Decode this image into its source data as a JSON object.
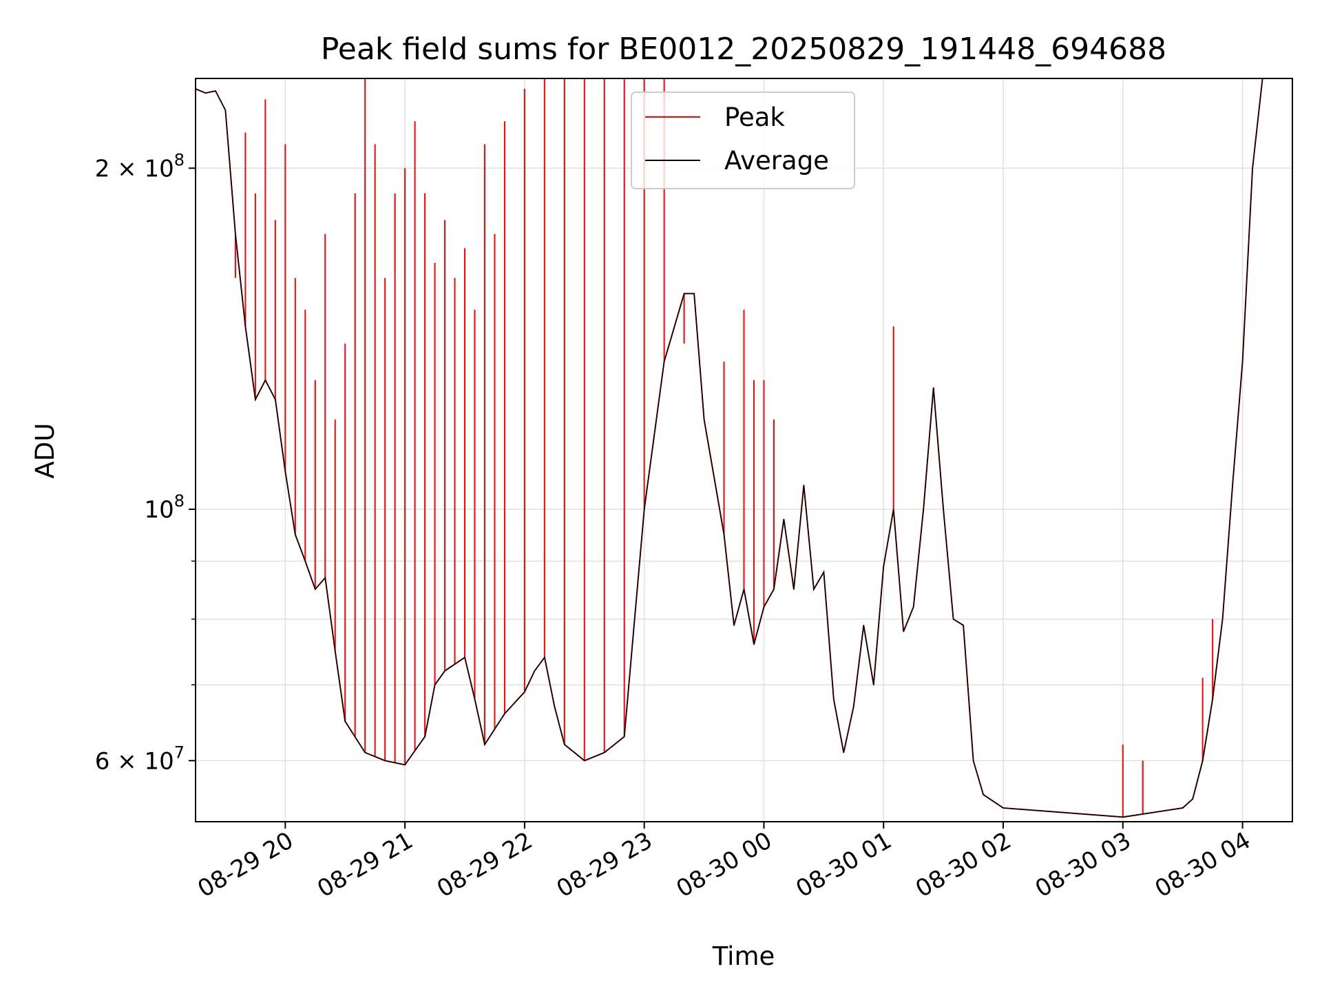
{
  "chart_data": {
    "type": "line",
    "title": "Peak field sums for BE0012_20250829_191448_694688",
    "xlabel": "Time",
    "ylabel": "ADU",
    "y_scale": "log",
    "xlim": [
      "2025-08-29 19:15",
      "2025-08-30 04:25"
    ],
    "ylim": [
      53000000.0,
      240000000.0
    ],
    "grid": true,
    "legend_position": "top-center",
    "x_tick_labels": [
      "08-29 20",
      "08-29 21",
      "08-29 22",
      "08-29 23",
      "08-30 00",
      "08-30 01",
      "08-30 02",
      "08-30 03",
      "08-30 04"
    ],
    "y_tick_labels": [
      {
        "value": 60000000,
        "mantissa": "6",
        "exponent": "7"
      },
      {
        "value": 100000000,
        "mantissa": "",
        "exponent": "8"
      },
      {
        "value": 200000000,
        "mantissa": "2",
        "exponent": "8"
      }
    ],
    "series": [
      {
        "name": "Peak",
        "color": "#ff0000",
        "baseline": "Average",
        "spikes": [
          [
            "2025-08-29 19:35",
            160000000.0
          ],
          [
            "2025-08-29 19:40",
            215000000.0
          ],
          [
            "2025-08-29 19:45",
            190000000.0
          ],
          [
            "2025-08-29 19:50",
            230000000.0
          ],
          [
            "2025-08-29 19:55",
            180000000.0
          ],
          [
            "2025-08-29 20:00",
            210000000.0
          ],
          [
            "2025-08-29 20:05",
            160000000.0
          ],
          [
            "2025-08-29 20:10",
            150000000.0
          ],
          [
            "2025-08-29 20:15",
            130000000.0
          ],
          [
            "2025-08-29 20:20",
            175000000.0
          ],
          [
            "2025-08-29 20:25",
            120000000.0
          ],
          [
            "2025-08-29 20:30",
            140000000.0
          ],
          [
            "2025-08-29 20:35",
            190000000.0
          ],
          [
            "2025-08-29 20:40",
            240000000.0
          ],
          [
            "2025-08-29 20:45",
            210000000.0
          ],
          [
            "2025-08-29 20:50",
            160000000.0
          ],
          [
            "2025-08-29 20:55",
            190000000.0
          ],
          [
            "2025-08-29 21:00",
            200000000.0
          ],
          [
            "2025-08-29 21:05",
            220000000.0
          ],
          [
            "2025-08-29 21:10",
            190000000.0
          ],
          [
            "2025-08-29 21:15",
            165000000.0
          ],
          [
            "2025-08-29 21:20",
            180000000.0
          ],
          [
            "2025-08-29 21:25",
            160000000.0
          ],
          [
            "2025-08-29 21:30",
            170000000.0
          ],
          [
            "2025-08-29 21:35",
            150000000.0
          ],
          [
            "2025-08-29 21:40",
            210000000.0
          ],
          [
            "2025-08-29 21:45",
            175000000.0
          ],
          [
            "2025-08-29 21:50",
            220000000.0
          ],
          [
            "2025-08-29 22:00",
            235000000.0
          ],
          [
            "2025-08-29 22:10",
            240000000.0
          ],
          [
            "2025-08-29 22:20",
            240000000.0
          ],
          [
            "2025-08-29 22:30",
            240000000.0
          ],
          [
            "2025-08-29 22:40",
            240000000.0
          ],
          [
            "2025-08-29 22:50",
            240000000.0
          ],
          [
            "2025-08-29 23:00",
            240000000.0
          ],
          [
            "2025-08-29 23:10",
            240000000.0
          ],
          [
            "2025-08-29 23:20",
            140000000.0
          ],
          [
            "2025-08-29 23:30",
            120000000.0
          ],
          [
            "2025-08-29 23:40",
            135000000.0
          ],
          [
            "2025-08-29 23:50",
            150000000.0
          ],
          [
            "2025-08-29 23:55",
            130000000.0
          ],
          [
            "2025-08-30 00:00",
            130000000.0
          ],
          [
            "2025-08-30 00:05",
            120000000.0
          ],
          [
            "2025-08-30 01:05",
            145000000.0
          ],
          [
            "2025-08-30 03:00",
            62000000.0
          ],
          [
            "2025-08-30 03:10",
            60000000.0
          ],
          [
            "2025-08-30 03:40",
            71000000.0
          ],
          [
            "2025-08-30 03:45",
            80000000.0
          ]
        ]
      },
      {
        "name": "Average",
        "color": "#000000",
        "points": [
          [
            "2025-08-29 19:15",
            235000000.0
          ],
          [
            "2025-08-29 19:20",
            233000000.0
          ],
          [
            "2025-08-29 19:25",
            234000000.0
          ],
          [
            "2025-08-29 19:30",
            225000000.0
          ],
          [
            "2025-08-29 19:35",
            175000000.0
          ],
          [
            "2025-08-29 19:40",
            145000000.0
          ],
          [
            "2025-08-29 19:45",
            125000000.0
          ],
          [
            "2025-08-29 19:50",
            130000000.0
          ],
          [
            "2025-08-29 19:55",
            125000000.0
          ],
          [
            "2025-08-29 20:00",
            108000000.0
          ],
          [
            "2025-08-29 20:05",
            95000000.0
          ],
          [
            "2025-08-29 20:10",
            90000000.0
          ],
          [
            "2025-08-29 20:15",
            85000000.0
          ],
          [
            "2025-08-29 20:20",
            87000000.0
          ],
          [
            "2025-08-29 20:25",
            75000000.0
          ],
          [
            "2025-08-29 20:30",
            65000000.0
          ],
          [
            "2025-08-29 20:40",
            61000000.0
          ],
          [
            "2025-08-29 20:50",
            60000000.0
          ],
          [
            "2025-08-29 21:00",
            59500000.0
          ],
          [
            "2025-08-29 21:10",
            63000000.0
          ],
          [
            "2025-08-29 21:15",
            70000000.0
          ],
          [
            "2025-08-29 21:20",
            72000000.0
          ],
          [
            "2025-08-29 21:30",
            74000000.0
          ],
          [
            "2025-08-29 21:35",
            68000000.0
          ],
          [
            "2025-08-29 21:40",
            62000000.0
          ],
          [
            "2025-08-29 21:50",
            66000000.0
          ],
          [
            "2025-08-29 22:00",
            69000000.0
          ],
          [
            "2025-08-29 22:05",
            72000000.0
          ],
          [
            "2025-08-29 22:10",
            74000000.0
          ],
          [
            "2025-08-29 22:15",
            67000000.0
          ],
          [
            "2025-08-29 22:20",
            62000000.0
          ],
          [
            "2025-08-29 22:30",
            60000000.0
          ],
          [
            "2025-08-29 22:40",
            61000000.0
          ],
          [
            "2025-08-29 22:50",
            63000000.0
          ],
          [
            "2025-08-29 23:00",
            100000000.0
          ],
          [
            "2025-08-29 23:10",
            135000000.0
          ],
          [
            "2025-08-29 23:20",
            155000000.0
          ],
          [
            "2025-08-29 23:25",
            155000000.0
          ],
          [
            "2025-08-29 23:30",
            120000000.0
          ],
          [
            "2025-08-29 23:40",
            95000000.0
          ],
          [
            "2025-08-29 23:45",
            79000000.0
          ],
          [
            "2025-08-29 23:50",
            85000000.0
          ],
          [
            "2025-08-29 23:55",
            76000000.0
          ],
          [
            "2025-08-30 00:00",
            82000000.0
          ],
          [
            "2025-08-30 00:05",
            85000000.0
          ],
          [
            "2025-08-30 00:10",
            98000000.0
          ],
          [
            "2025-08-30 00:15",
            85000000.0
          ],
          [
            "2025-08-30 00:20",
            105000000.0
          ],
          [
            "2025-08-30 00:25",
            85000000.0
          ],
          [
            "2025-08-30 00:30",
            88000000.0
          ],
          [
            "2025-08-30 00:35",
            68000000.0
          ],
          [
            "2025-08-30 00:40",
            61000000.0
          ],
          [
            "2025-08-30 00:45",
            67000000.0
          ],
          [
            "2025-08-30 00:50",
            79000000.0
          ],
          [
            "2025-08-30 00:55",
            70000000.0
          ],
          [
            "2025-08-30 01:00",
            89000000.0
          ],
          [
            "2025-08-30 01:05",
            100000000.0
          ],
          [
            "2025-08-30 01:10",
            78000000.0
          ],
          [
            "2025-08-30 01:15",
            82000000.0
          ],
          [
            "2025-08-30 01:20",
            100000000.0
          ],
          [
            "2025-08-30 01:25",
            128000000.0
          ],
          [
            "2025-08-30 01:30",
            100000000.0
          ],
          [
            "2025-08-30 01:35",
            80000000.0
          ],
          [
            "2025-08-30 01:40",
            79000000.0
          ],
          [
            "2025-08-30 01:45",
            60000000.0
          ],
          [
            "2025-08-30 01:50",
            56000000.0
          ],
          [
            "2025-08-30 02:00",
            54500000.0
          ],
          [
            "2025-08-30 02:30",
            54000000.0
          ],
          [
            "2025-08-30 03:00",
            53500000.0
          ],
          [
            "2025-08-30 03:30",
            54500000.0
          ],
          [
            "2025-08-30 03:35",
            55500000.0
          ],
          [
            "2025-08-30 03:40",
            60000000.0
          ],
          [
            "2025-08-30 03:45",
            68000000.0
          ],
          [
            "2025-08-30 03:50",
            80000000.0
          ],
          [
            "2025-08-30 03:55",
            105000000.0
          ],
          [
            "2025-08-30 04:00",
            135000000.0
          ],
          [
            "2025-08-30 04:05",
            200000000.0
          ],
          [
            "2025-08-30 04:10",
            240000000.0
          ]
        ]
      }
    ]
  }
}
